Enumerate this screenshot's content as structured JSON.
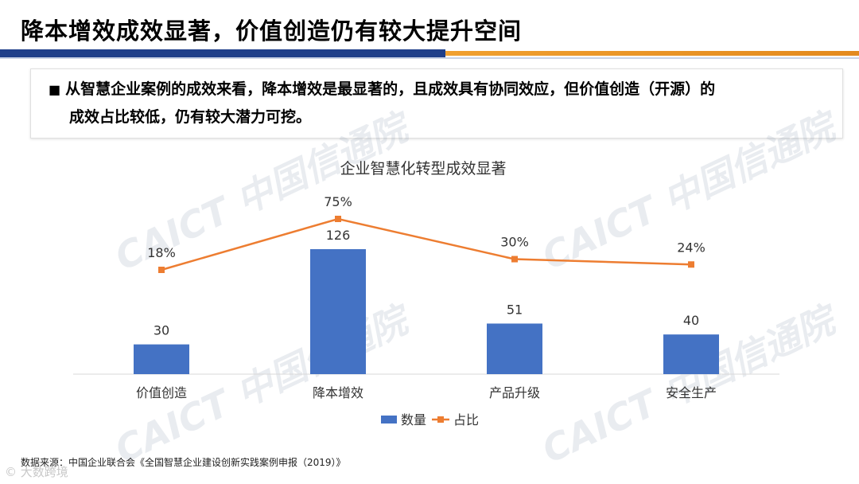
{
  "slide": {
    "title": "降本增效成效显著，价值创造仍有较大提升空间",
    "callout_bullet": "■",
    "callout_line1": "从智慧企业案例的成效来看，降本增效是最显著的，且成效具有协同效应，但价值创造（开源）的",
    "callout_line2": "成效占比较低，仍有较大潜力可挖。",
    "source_note": "数据来源：中国企业联合会《全国智慧企业建设创新实践案例申报（2019）》",
    "footer_logo": "© 大数跨境",
    "watermark_text": "CAICT 中国信通院"
  },
  "colors": {
    "bar": "#4472c4",
    "line": "#ed7d31",
    "title_rule_blue": "#1f3f8a",
    "title_rule_orange": "#f0a030"
  },
  "chart_data": {
    "type": "bar",
    "title": "企业智慧化转型成效显著",
    "categories": [
      "价值创造",
      "降本增效",
      "产品升级",
      "安全生产"
    ],
    "series": [
      {
        "name": "数量",
        "kind": "bar",
        "values": [
          30,
          126,
          51,
          40
        ],
        "labels": [
          "30",
          "126",
          "51",
          "40"
        ]
      },
      {
        "name": "占比",
        "kind": "line",
        "values": [
          18,
          75,
          30,
          24
        ],
        "labels": [
          "18%",
          "75%",
          "30%",
          "24%"
        ]
      }
    ],
    "legend_position": "bottom",
    "grid": false
  }
}
